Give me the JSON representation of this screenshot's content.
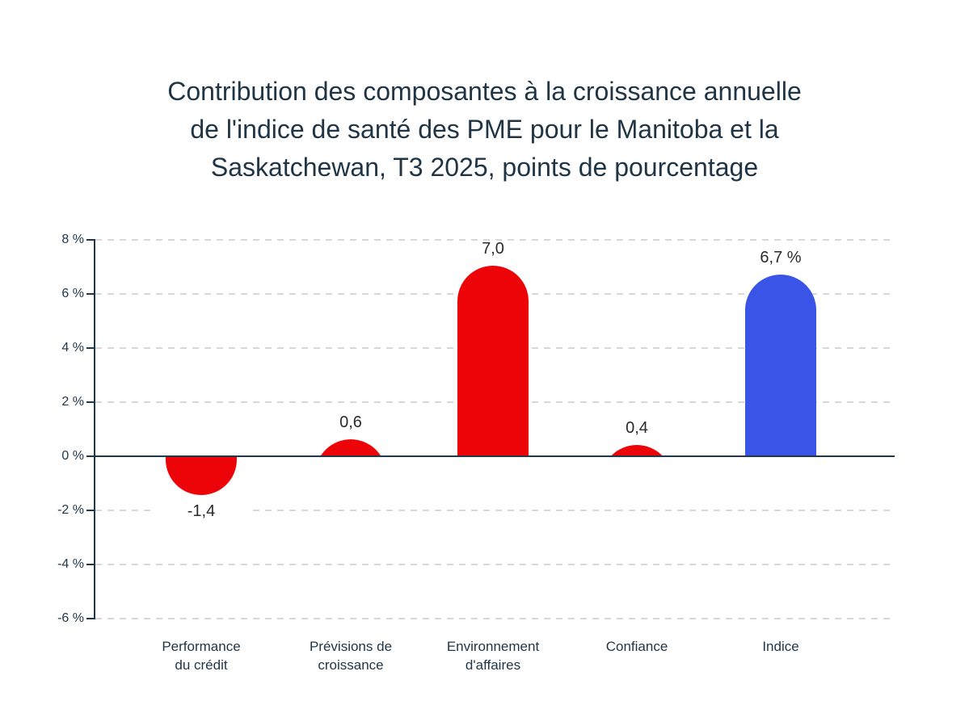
{
  "chart_data": {
    "type": "bar",
    "title": "Contribution des composantes à la croissance annuelle de l'indice de santé des PME pour le Manitoba et la Saskatchewan, T3 2025, points de pourcentage",
    "title_lines": [
      "Contribution des composantes à la croissance annuelle",
      "de l'indice de santé des PME pour le Manitoba et la",
      "Saskatchewan, T3 2025, points de pourcentage"
    ],
    "categories": [
      "Performance du crédit",
      "Prévisions de croissance",
      "Environnement d'affaires",
      "Confiance",
      "Indice"
    ],
    "category_lines": [
      [
        "Performance",
        "du crédit"
      ],
      [
        "Prévisions de",
        "croissance"
      ],
      [
        "Environnement",
        "d'affaires"
      ],
      [
        "Confiance"
      ],
      [
        "Indice"
      ]
    ],
    "values": [
      -1.4,
      0.6,
      7.0,
      0.4,
      6.7
    ],
    "value_labels": [
      "-1,4",
      "0,6",
      "7,0",
      "0,4",
      "6,7 %"
    ],
    "xlabel": "",
    "ylabel": "",
    "unit": "points de pourcentage",
    "ylim": [
      -6,
      8
    ],
    "ytick_step": 2,
    "ytick_labels": [
      "8 %",
      "6 %",
      "4 %",
      "2 %",
      "0 %",
      "-2 %",
      "-4 %",
      "-6 %"
    ],
    "ytick_values": [
      8,
      6,
      4,
      2,
      0,
      -2,
      -4,
      -6
    ],
    "grid": "horizontal-dashed",
    "legend_position": "none",
    "bar_colors": [
      "#ec0409",
      "#ec0409",
      "#ec0409",
      "#ec0409",
      "#3a54e8"
    ]
  },
  "ui": {
    "colors": {
      "background": "#ffffff",
      "title_text": "#1f3546",
      "axis": "#22374a",
      "grid": "#d8d8d8",
      "value_label_text": "#2a2a2a",
      "category_text": "#1f3546",
      "bar_red": "#ec0409",
      "bar_blue": "#3a54e8"
    }
  }
}
